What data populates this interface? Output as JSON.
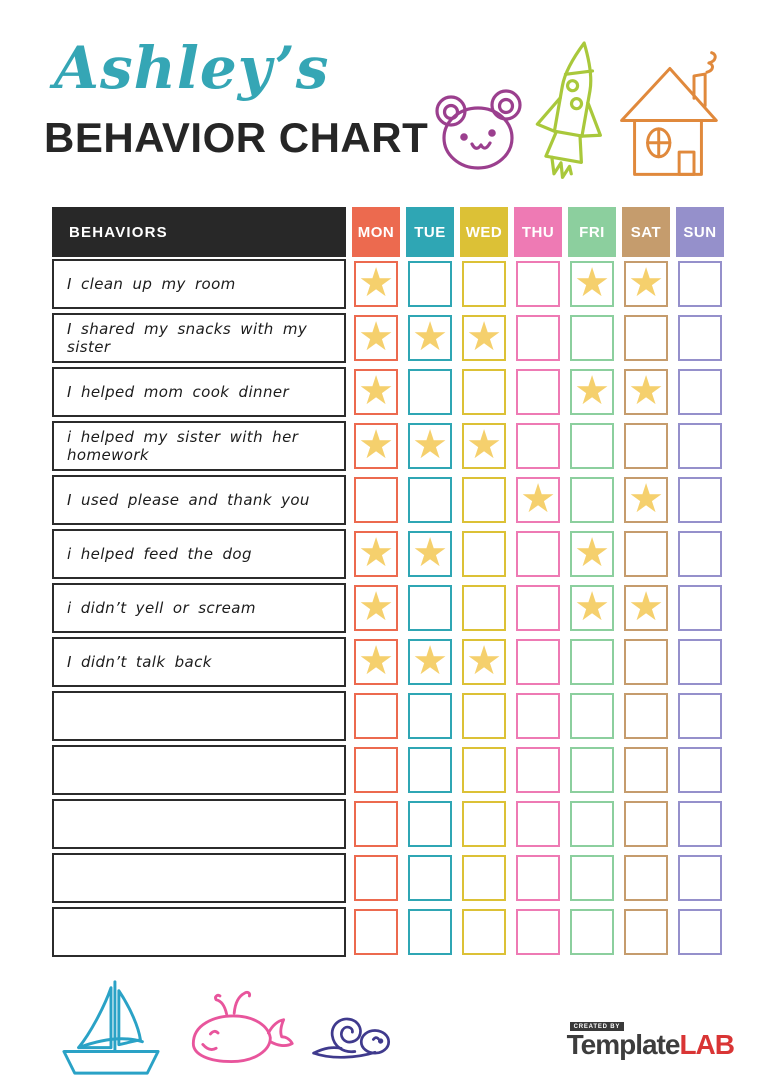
{
  "header": {
    "owner_name": "Ashley’s",
    "title": "BEHAVIOR CHART",
    "owner_color": "#35a6b5",
    "icons": [
      {
        "name": "bear-icon",
        "color": "#9b3f8e"
      },
      {
        "name": "rocket-icon",
        "color": "#a9c83b"
      },
      {
        "name": "house-icon",
        "color": "#e0893c"
      }
    ]
  },
  "table": {
    "behaviors_header": "BEHAVIORS",
    "header_bg": "#282828",
    "star_glyph": "★",
    "star_color": "#f5d06d",
    "days": [
      {
        "label": "MON",
        "color": "#ec6a4f"
      },
      {
        "label": "TUE",
        "color": "#2fa6b4"
      },
      {
        "label": "WED",
        "color": "#dcc136"
      },
      {
        "label": "THU",
        "color": "#ee7ab4"
      },
      {
        "label": "FRI",
        "color": "#8ccf9e"
      },
      {
        "label": "SAT",
        "color": "#c59c6d"
      },
      {
        "label": "SUN",
        "color": "#9590cb"
      }
    ],
    "rows": [
      {
        "label": "I clean up my room",
        "stars": [
          1,
          0,
          0,
          0,
          1,
          1,
          0
        ]
      },
      {
        "label": "I shared my snacks with my sister",
        "stars": [
          1,
          1,
          1,
          0,
          0,
          0,
          0
        ]
      },
      {
        "label": "I helped mom cook dinner",
        "stars": [
          1,
          0,
          0,
          0,
          1,
          1,
          0
        ]
      },
      {
        "label": "i helped my sister with her homework",
        "stars": [
          1,
          1,
          1,
          0,
          0,
          0,
          0
        ]
      },
      {
        "label": "I used please and thank you",
        "stars": [
          0,
          0,
          0,
          1,
          0,
          1,
          0
        ]
      },
      {
        "label": "i helped feed the dog",
        "stars": [
          1,
          1,
          0,
          0,
          1,
          0,
          0
        ]
      },
      {
        "label": "i didn’t yell or scream",
        "stars": [
          1,
          0,
          0,
          0,
          1,
          1,
          0
        ]
      },
      {
        "label": "I didn’t talk back",
        "stars": [
          1,
          1,
          1,
          0,
          0,
          0,
          0
        ]
      },
      {
        "label": "",
        "stars": [
          0,
          0,
          0,
          0,
          0,
          0,
          0
        ]
      },
      {
        "label": "",
        "stars": [
          0,
          0,
          0,
          0,
          0,
          0,
          0
        ]
      },
      {
        "label": "",
        "stars": [
          0,
          0,
          0,
          0,
          0,
          0,
          0
        ]
      },
      {
        "label": "",
        "stars": [
          0,
          0,
          0,
          0,
          0,
          0,
          0
        ]
      },
      {
        "label": "",
        "stars": [
          0,
          0,
          0,
          0,
          0,
          0,
          0
        ]
      }
    ]
  },
  "footer": {
    "icons": [
      {
        "name": "sailboat-icon",
        "color": "#2aa2c6"
      },
      {
        "name": "whale-icon",
        "color": "#e8559c"
      },
      {
        "name": "snail-icon",
        "color": "#3f3a8d"
      }
    ],
    "credit": {
      "created_by": "CREATED BY",
      "brand_name": "Template",
      "brand_suffix": "LAB",
      "brand_color": "#3d3d3d",
      "suffix_color": "#d93535"
    }
  }
}
